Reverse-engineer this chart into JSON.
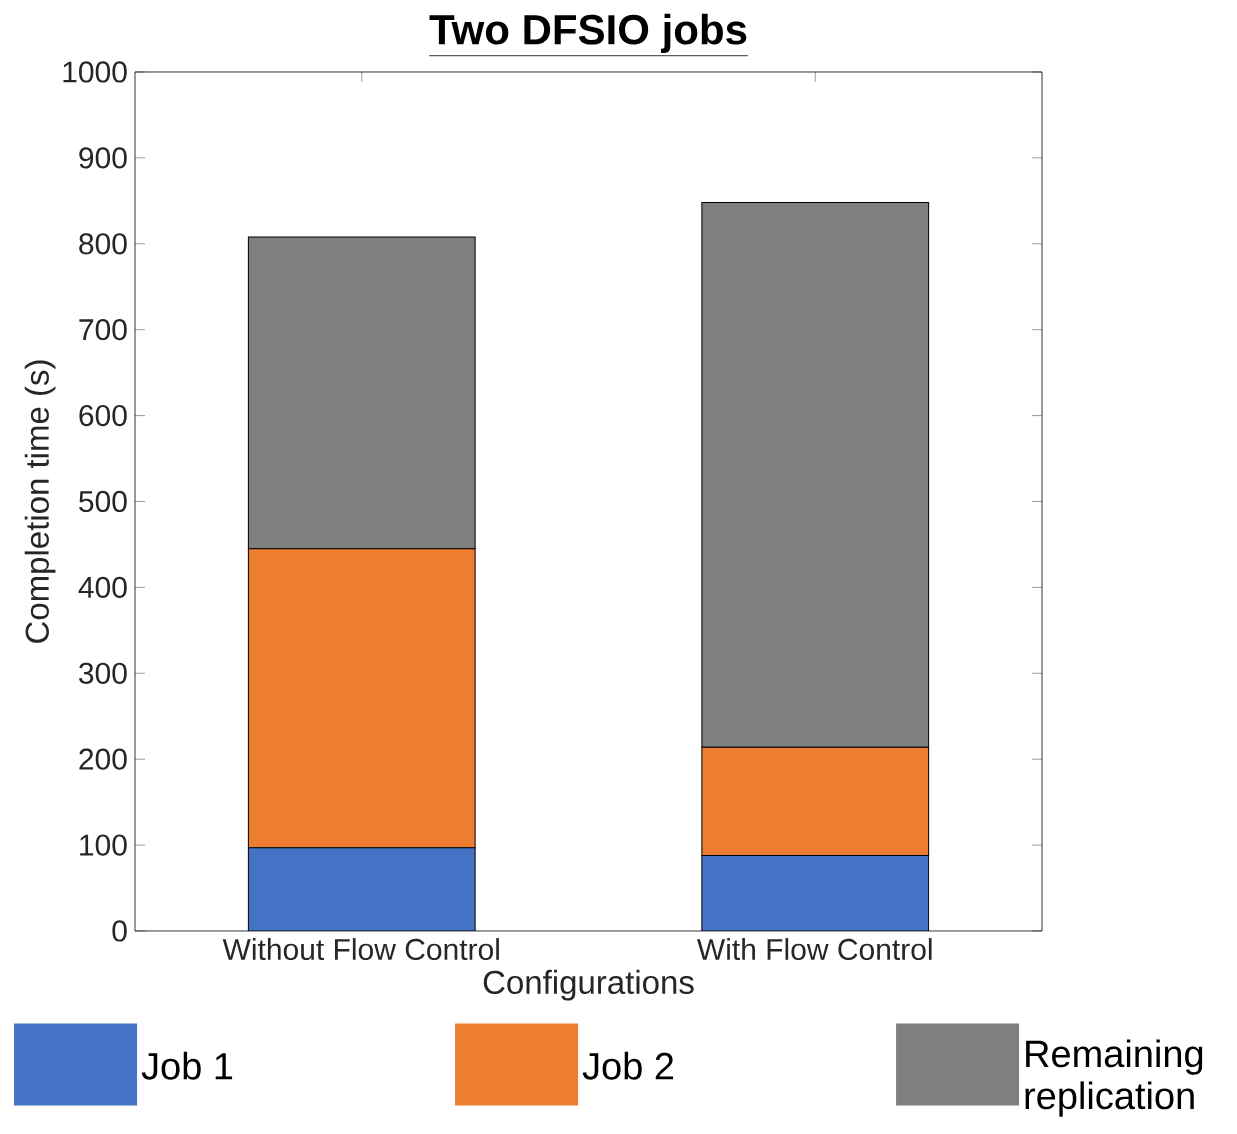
{
  "chart_data": {
    "type": "bar",
    "stacked": true,
    "title": "Two DFSIO jobs",
    "xlabel": "Configurations",
    "ylabel": "Completion time (s)",
    "categories": [
      "Without Flow Control",
      "With Flow Control"
    ],
    "series": [
      {
        "name": "Job 1",
        "color": "#4472c4",
        "values": [
          97,
          88
        ]
      },
      {
        "name": "Job 2",
        "color": "#ed7d31",
        "values": [
          348,
          126
        ]
      },
      {
        "name": "Remaining replication",
        "color": "#7f7f7f",
        "values": [
          363,
          634
        ]
      }
    ],
    "ylim": [
      0,
      1000
    ],
    "yticks": [
      0,
      100,
      200,
      300,
      400,
      500,
      600,
      700,
      800,
      900,
      1000
    ],
    "legend": "bottom"
  }
}
